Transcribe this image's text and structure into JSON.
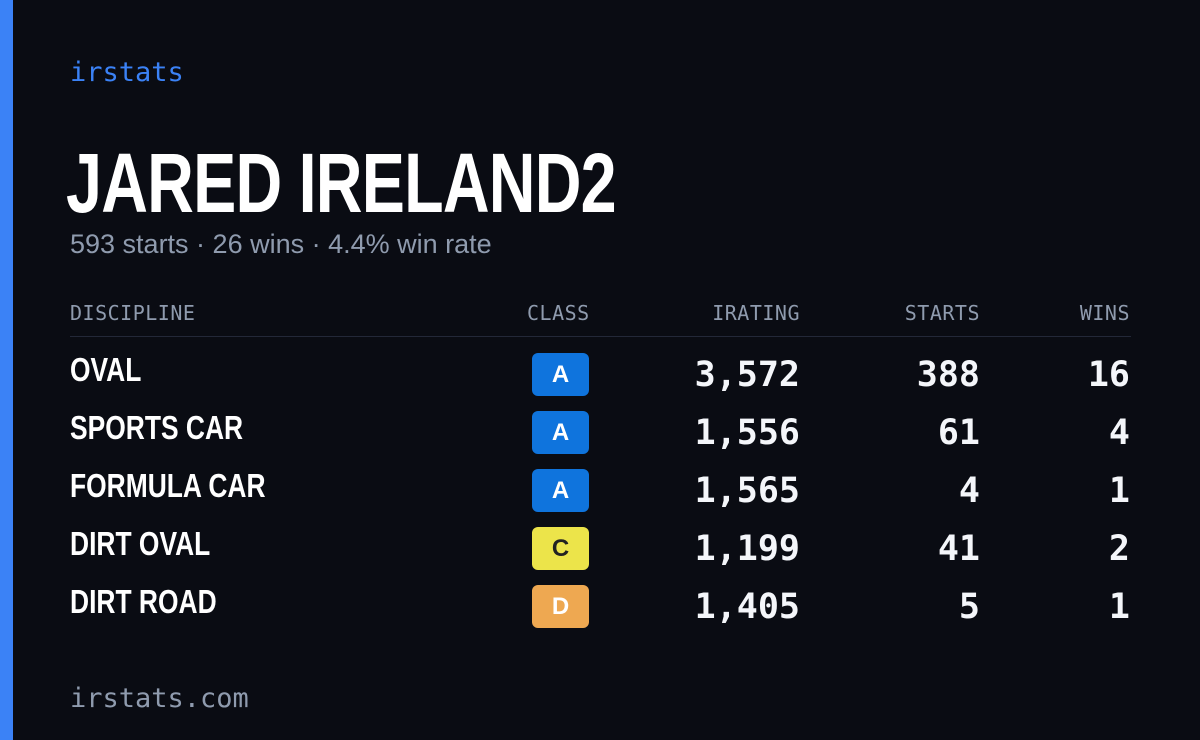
{
  "brand": "irstats",
  "driver": {
    "name": "JARED IRELAND2",
    "summary": "593 starts · 26 wins · 4.4% win rate"
  },
  "table": {
    "headers": {
      "discipline": "DISCIPLINE",
      "class": "CLASS",
      "irating": "IRATING",
      "starts": "STARTS",
      "wins": "WINS"
    },
    "rows": [
      {
        "discipline": "OVAL",
        "class": "A",
        "irating": "3,572",
        "starts": "388",
        "wins": "16"
      },
      {
        "discipline": "SPORTS CAR",
        "class": "A",
        "irating": "1,556",
        "starts": "61",
        "wins": "4"
      },
      {
        "discipline": "FORMULA CAR",
        "class": "A",
        "irating": "1,565",
        "starts": "4",
        "wins": "1"
      },
      {
        "discipline": "DIRT OVAL",
        "class": "C",
        "irating": "1,199",
        "starts": "41",
        "wins": "2"
      },
      {
        "discipline": "DIRT ROAD",
        "class": "D",
        "irating": "1,405",
        "starts": "5",
        "wins": "1"
      }
    ]
  },
  "class_colors": {
    "A": "#0f74dd",
    "C": "#ece44a",
    "D": "#eea851"
  },
  "accent_color": "#3b82f6",
  "footer": "irstats.com"
}
